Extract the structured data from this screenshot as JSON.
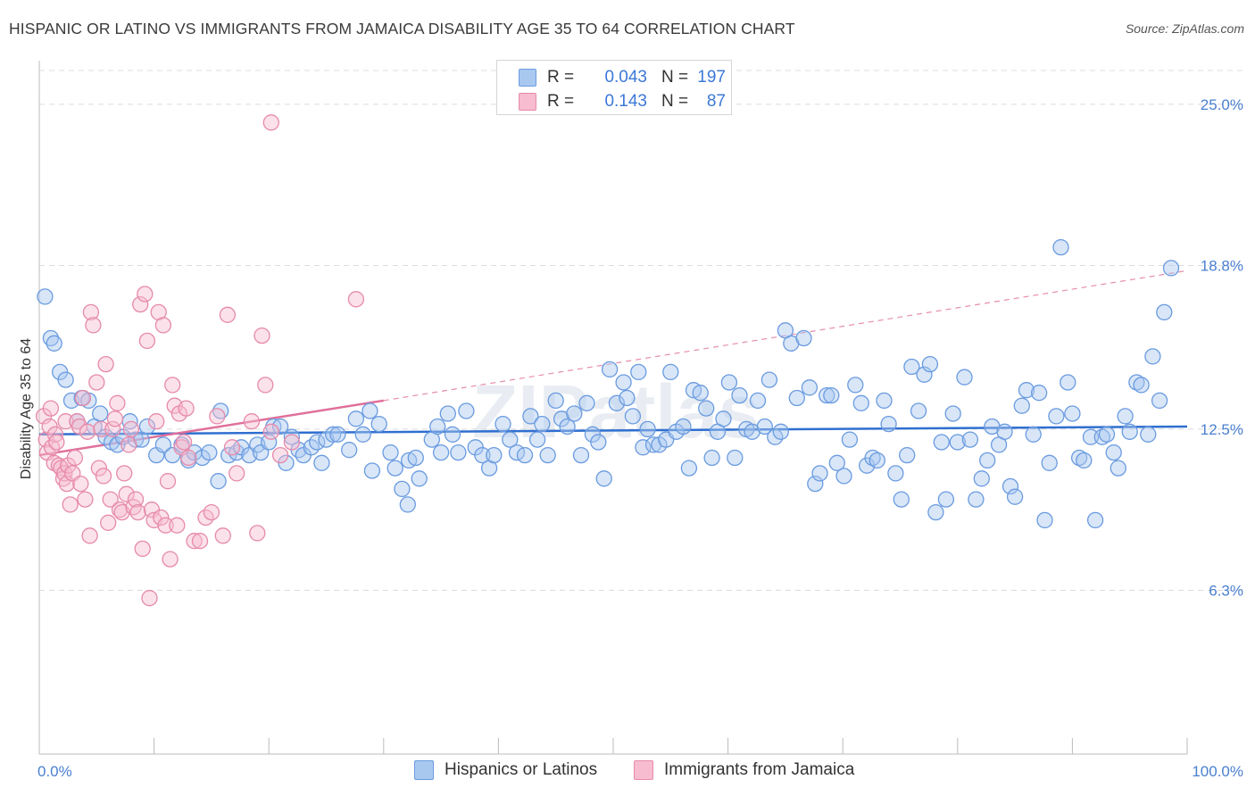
{
  "title": "HISPANIC OR LATINO VS IMMIGRANTS FROM JAMAICA DISABILITY AGE 35 TO 64 CORRELATION CHART",
  "source": "Source: ZipAtlas.com",
  "watermark": "ZIPatlas",
  "legend_top": [
    {
      "r_label": "R =",
      "r_value": "0.043",
      "n_label": "N =",
      "n_value": "197",
      "color": "#a9c8ef",
      "border": "#6a9be0"
    },
    {
      "r_label": "R =",
      "r_value": "0.143",
      "n_label": "N =",
      "n_value": "87",
      "color": "#f7bcd0",
      "border": "#e68aaa"
    }
  ],
  "legend_bottom": [
    {
      "label": "Hispanics or Latinos",
      "color": "#a9c8ef",
      "border": "#6a9be0"
    },
    {
      "label": "Immigrants from Jamaica",
      "color": "#f7bcd0",
      "border": "#e68aaa"
    }
  ],
  "chart_data": {
    "type": "scatter",
    "title": "HISPANIC OR LATINO VS IMMIGRANTS FROM JAMAICA DISABILITY AGE 35 TO 64 CORRELATION CHART",
    "xlabel": "",
    "ylabel": "Disability Age 35 to 64",
    "xlim": [
      0,
      100
    ],
    "ylim": [
      0,
      26.3
    ],
    "x_tick_labels": [
      "0.0%",
      "100.0%"
    ],
    "y_ticks": [
      6.3,
      12.5,
      18.8,
      25.0
    ],
    "y_tick_labels": [
      "6.3%",
      "12.5%",
      "18.8%",
      "25.0%"
    ],
    "grid": true,
    "legend_position": "bottom",
    "series": [
      {
        "name": "Hispanics or Latinos",
        "color": "#6a9be0",
        "fill": "#a9c8ef",
        "trend": {
          "x": [
            0,
            100
          ],
          "y": [
            12.3,
            12.6
          ],
          "color": "#2f6fd0"
        },
        "points": [
          [
            0.5,
            17.6
          ],
          [
            1.0,
            16.0
          ],
          [
            1.3,
            15.8
          ],
          [
            1.8,
            14.7
          ],
          [
            2.3,
            14.4
          ],
          [
            2.8,
            13.6
          ],
          [
            3.3,
            12.8
          ],
          [
            3.7,
            13.7
          ],
          [
            4.3,
            13.6
          ],
          [
            4.8,
            12.6
          ],
          [
            5.3,
            13.1
          ],
          [
            5.8,
            12.2
          ],
          [
            6.3,
            12.0
          ],
          [
            6.8,
            11.9
          ],
          [
            7.3,
            12.2
          ],
          [
            7.9,
            12.8
          ],
          [
            8.4,
            12.1
          ],
          [
            8.9,
            12.1
          ],
          [
            9.4,
            12.6
          ],
          [
            10.2,
            11.5
          ],
          [
            10.8,
            11.9
          ],
          [
            11.6,
            11.5
          ],
          [
            12.4,
            11.9
          ],
          [
            13.0,
            11.3
          ],
          [
            13.5,
            11.6
          ],
          [
            14.2,
            11.4
          ],
          [
            14.8,
            11.6
          ],
          [
            15.6,
            10.5
          ],
          [
            15.8,
            13.2
          ],
          [
            16.5,
            11.5
          ],
          [
            17.2,
            11.6
          ],
          [
            17.6,
            11.8
          ],
          [
            18.3,
            11.5
          ],
          [
            19.0,
            11.9
          ],
          [
            19.3,
            11.6
          ],
          [
            20.0,
            12.0
          ],
          [
            20.4,
            12.6
          ],
          [
            21.0,
            12.6
          ],
          [
            21.5,
            11.2
          ],
          [
            22.0,
            12.2
          ],
          [
            22.6,
            11.7
          ],
          [
            23.0,
            11.5
          ],
          [
            23.7,
            11.8
          ],
          [
            24.2,
            12.0
          ],
          [
            24.6,
            11.2
          ],
          [
            25.0,
            12.1
          ],
          [
            25.6,
            12.3
          ],
          [
            26.0,
            12.3
          ],
          [
            27.0,
            11.7
          ],
          [
            27.6,
            12.9
          ],
          [
            28.2,
            12.3
          ],
          [
            29.0,
            10.9
          ],
          [
            28.8,
            13.2
          ],
          [
            29.6,
            12.7
          ],
          [
            30.6,
            11.6
          ],
          [
            31.0,
            11.0
          ],
          [
            31.6,
            10.2
          ],
          [
            32.1,
            9.6
          ],
          [
            32.2,
            11.3
          ],
          [
            32.8,
            11.4
          ],
          [
            33.1,
            10.6
          ],
          [
            34.2,
            12.1
          ],
          [
            34.7,
            12.6
          ],
          [
            35.0,
            11.6
          ],
          [
            35.6,
            13.1
          ],
          [
            36.0,
            12.3
          ],
          [
            36.5,
            11.6
          ],
          [
            37.2,
            13.2
          ],
          [
            38.0,
            11.8
          ],
          [
            38.6,
            11.5
          ],
          [
            39.2,
            11.0
          ],
          [
            39.6,
            11.5
          ],
          [
            40.4,
            12.7
          ],
          [
            41.0,
            12.1
          ],
          [
            41.6,
            11.6
          ],
          [
            42.3,
            11.5
          ],
          [
            42.8,
            13.0
          ],
          [
            43.4,
            12.1
          ],
          [
            43.8,
            12.7
          ],
          [
            44.3,
            11.5
          ],
          [
            45.0,
            13.6
          ],
          [
            45.5,
            12.9
          ],
          [
            46.0,
            12.6
          ],
          [
            46.6,
            13.1
          ],
          [
            47.2,
            11.5
          ],
          [
            47.7,
            13.5
          ],
          [
            48.2,
            12.3
          ],
          [
            48.7,
            12.0
          ],
          [
            49.2,
            10.6
          ],
          [
            49.7,
            14.8
          ],
          [
            50.3,
            13.5
          ],
          [
            50.9,
            14.3
          ],
          [
            51.2,
            13.7
          ],
          [
            51.7,
            13.0
          ],
          [
            52.2,
            14.7
          ],
          [
            52.6,
            11.8
          ],
          [
            53.0,
            12.5
          ],
          [
            53.5,
            11.9
          ],
          [
            54.0,
            11.9
          ],
          [
            54.6,
            12.1
          ],
          [
            55.0,
            14.7
          ],
          [
            55.5,
            12.4
          ],
          [
            56.1,
            12.6
          ],
          [
            56.6,
            11.0
          ],
          [
            57.0,
            14.0
          ],
          [
            57.6,
            13.9
          ],
          [
            58.1,
            13.3
          ],
          [
            58.6,
            11.4
          ],
          [
            59.1,
            12.4
          ],
          [
            59.6,
            12.9
          ],
          [
            60.1,
            14.3
          ],
          [
            60.6,
            11.4
          ],
          [
            61.0,
            13.8
          ],
          [
            61.6,
            12.5
          ],
          [
            62.1,
            12.4
          ],
          [
            62.6,
            13.6
          ],
          [
            63.2,
            12.6
          ],
          [
            63.6,
            14.4
          ],
          [
            64.1,
            12.2
          ],
          [
            64.6,
            12.4
          ],
          [
            65.0,
            16.3
          ],
          [
            65.5,
            15.8
          ],
          [
            66.0,
            13.7
          ],
          [
            66.6,
            16.0
          ],
          [
            67.1,
            14.1
          ],
          [
            67.6,
            10.4
          ],
          [
            68.0,
            10.8
          ],
          [
            68.6,
            13.8
          ],
          [
            69.0,
            13.8
          ],
          [
            69.5,
            11.2
          ],
          [
            70.1,
            10.7
          ],
          [
            70.6,
            12.1
          ],
          [
            71.1,
            14.2
          ],
          [
            71.6,
            13.5
          ],
          [
            72.1,
            11.1
          ],
          [
            72.6,
            11.4
          ],
          [
            73.0,
            11.3
          ],
          [
            73.6,
            13.6
          ],
          [
            74.0,
            12.7
          ],
          [
            74.6,
            10.8
          ],
          [
            75.1,
            9.8
          ],
          [
            75.6,
            11.5
          ],
          [
            76.0,
            14.9
          ],
          [
            76.6,
            13.2
          ],
          [
            77.1,
            14.6
          ],
          [
            77.6,
            15.0
          ],
          [
            78.1,
            9.3
          ],
          [
            78.6,
            12.0
          ],
          [
            79.0,
            9.8
          ],
          [
            79.6,
            13.1
          ],
          [
            80.0,
            12.0
          ],
          [
            80.6,
            14.5
          ],
          [
            81.1,
            12.1
          ],
          [
            81.6,
            9.8
          ],
          [
            82.1,
            10.6
          ],
          [
            82.6,
            11.3
          ],
          [
            83.0,
            12.6
          ],
          [
            83.6,
            11.9
          ],
          [
            84.1,
            12.4
          ],
          [
            84.6,
            10.3
          ],
          [
            85.0,
            9.9
          ],
          [
            85.6,
            13.4
          ],
          [
            86.0,
            14.0
          ],
          [
            86.6,
            12.3
          ],
          [
            87.1,
            13.9
          ],
          [
            87.6,
            9.0
          ],
          [
            88.0,
            11.2
          ],
          [
            88.6,
            13.0
          ],
          [
            89.0,
            19.5
          ],
          [
            89.6,
            14.3
          ],
          [
            90.0,
            13.1
          ],
          [
            90.6,
            11.4
          ],
          [
            91.0,
            11.3
          ],
          [
            91.6,
            12.2
          ],
          [
            92.0,
            9.0
          ],
          [
            92.6,
            12.2
          ],
          [
            93.0,
            12.3
          ],
          [
            93.6,
            11.6
          ],
          [
            94.0,
            11.0
          ],
          [
            94.6,
            13.0
          ],
          [
            95.0,
            12.4
          ],
          [
            95.6,
            14.3
          ],
          [
            96.0,
            14.2
          ],
          [
            96.6,
            12.3
          ],
          [
            97.0,
            15.3
          ],
          [
            97.6,
            13.6
          ],
          [
            98.0,
            17.0
          ],
          [
            98.6,
            18.7
          ]
        ]
      },
      {
        "name": "Immigrants from Jamaica",
        "color": "#e68aaa",
        "fill": "#f7bcd0",
        "trend": {
          "x": [
            0,
            30
          ],
          "y": [
            11.5,
            13.6
          ],
          "extended_x": [
            30,
            100
          ],
          "extended_y": [
            13.6,
            18.6
          ],
          "color": "#e0709a"
        },
        "points": [
          [
            0.4,
            13.0
          ],
          [
            0.6,
            12.1
          ],
          [
            0.7,
            11.6
          ],
          [
            0.9,
            12.6
          ],
          [
            1.0,
            13.3
          ],
          [
            1.1,
            11.8
          ],
          [
            1.3,
            11.2
          ],
          [
            1.4,
            12.3
          ],
          [
            1.5,
            12.0
          ],
          [
            1.7,
            11.1
          ],
          [
            1.9,
            11.0
          ],
          [
            2.1,
            10.6
          ],
          [
            2.2,
            10.8
          ],
          [
            2.3,
            12.8
          ],
          [
            2.4,
            10.4
          ],
          [
            2.5,
            11.1
          ],
          [
            2.7,
            9.6
          ],
          [
            2.9,
            10.8
          ],
          [
            3.1,
            11.4
          ],
          [
            3.3,
            12.8
          ],
          [
            3.5,
            12.6
          ],
          [
            3.6,
            10.4
          ],
          [
            3.8,
            13.7
          ],
          [
            4.0,
            9.8
          ],
          [
            4.2,
            12.4
          ],
          [
            4.4,
            8.4
          ],
          [
            4.5,
            17.0
          ],
          [
            4.7,
            16.5
          ],
          [
            5.0,
            14.3
          ],
          [
            5.2,
            11.0
          ],
          [
            5.4,
            12.5
          ],
          [
            5.6,
            10.7
          ],
          [
            5.8,
            15.0
          ],
          [
            6.0,
            8.9
          ],
          [
            6.2,
            9.8
          ],
          [
            6.4,
            12.5
          ],
          [
            6.6,
            12.9
          ],
          [
            6.8,
            13.5
          ],
          [
            7.0,
            9.4
          ],
          [
            7.2,
            9.3
          ],
          [
            7.4,
            10.8
          ],
          [
            7.6,
            10.0
          ],
          [
            7.8,
            11.9
          ],
          [
            8.0,
            12.5
          ],
          [
            8.2,
            9.5
          ],
          [
            8.4,
            9.8
          ],
          [
            8.6,
            9.3
          ],
          [
            8.8,
            17.3
          ],
          [
            9.0,
            7.9
          ],
          [
            9.2,
            17.7
          ],
          [
            9.4,
            15.9
          ],
          [
            9.6,
            6.0
          ],
          [
            9.8,
            9.4
          ],
          [
            10.0,
            9.0
          ],
          [
            10.2,
            12.8
          ],
          [
            10.4,
            17.0
          ],
          [
            10.6,
            9.1
          ],
          [
            10.8,
            16.5
          ],
          [
            11.0,
            8.8
          ],
          [
            11.2,
            10.5
          ],
          [
            11.4,
            7.5
          ],
          [
            11.6,
            14.2
          ],
          [
            11.8,
            13.4
          ],
          [
            12.0,
            8.8
          ],
          [
            12.2,
            13.1
          ],
          [
            12.4,
            11.8
          ],
          [
            12.6,
            12.0
          ],
          [
            12.8,
            13.3
          ],
          [
            13.0,
            11.4
          ],
          [
            13.5,
            8.2
          ],
          [
            14.0,
            8.2
          ],
          [
            14.5,
            9.1
          ],
          [
            15.0,
            9.3
          ],
          [
            15.5,
            13.0
          ],
          [
            16.0,
            8.4
          ],
          [
            16.4,
            16.9
          ],
          [
            16.8,
            11.8
          ],
          [
            17.2,
            10.8
          ],
          [
            18.5,
            12.8
          ],
          [
            19.0,
            8.5
          ],
          [
            19.4,
            16.1
          ],
          [
            19.7,
            14.2
          ],
          [
            20.2,
            12.4
          ],
          [
            21.0,
            11.5
          ],
          [
            22.0,
            12.0
          ],
          [
            20.2,
            24.3
          ],
          [
            27.6,
            17.5
          ]
        ]
      }
    ]
  }
}
